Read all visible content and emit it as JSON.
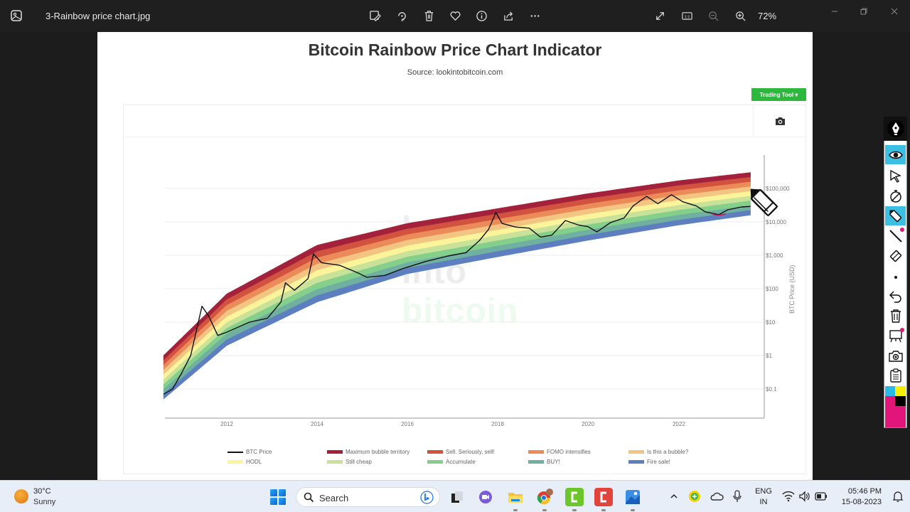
{
  "window": {
    "filename": "3-Rainbow price chart.jpg",
    "zoom_level": "72%",
    "toolbar_icons": [
      "edit-icon",
      "rotate-icon",
      "delete-icon",
      "favorite-icon",
      "info-icon",
      "share-icon",
      "more-icon"
    ],
    "view_icons": [
      "fullscreen-icon",
      "actual-size-icon",
      "zoom-out-icon",
      "zoom-in-icon"
    ],
    "window_controls": [
      "minimize-icon",
      "restore-icon",
      "close-icon"
    ]
  },
  "image": {
    "title": "Bitcoin Rainbow Price Chart Indicator",
    "source": "Source: lookintobitcoin.com",
    "trading_tool_label": "Trading Tool ▾",
    "watermark": [
      "look",
      "into",
      "bitcoin"
    ]
  },
  "chart_data": {
    "type": "line",
    "title": "Bitcoin Rainbow Price Chart Indicator",
    "subtitle": "Source: lookintobitcoin.com",
    "xlabel": "",
    "ylabel": "BTC Price (USD)",
    "yscale": "log",
    "x_ticks": [
      "2012",
      "2014",
      "2016",
      "2018",
      "2020",
      "2022"
    ],
    "y_ticks": [
      "$0.1",
      "$1",
      "$10",
      "$100",
      "$1,000",
      "$10,000",
      "$100,000"
    ],
    "xlim": [
      2010.6,
      2023.7
    ],
    "ylim": [
      0.03,
      1000000
    ],
    "grid": true,
    "legend_position": "bottom",
    "legend": [
      {
        "label": "BTC Price",
        "color": "#111111",
        "kind": "line"
      },
      {
        "label": "Maximum bubble territory",
        "color": "#a3213a",
        "kind": "band"
      },
      {
        "label": "Sell. Seriously, sell!",
        "color": "#d1523f",
        "kind": "band"
      },
      {
        "label": "FOMO intensifies",
        "color": "#ec8b5a",
        "kind": "band"
      },
      {
        "label": "Is this a bubble?",
        "color": "#f3c582",
        "kind": "band"
      },
      {
        "label": "HODL",
        "color": "#fbf49a",
        "kind": "band"
      },
      {
        "label": "Still cheap",
        "color": "#c8e29a",
        "kind": "band"
      },
      {
        "label": "Accumulate",
        "color": "#83cf8b",
        "kind": "band"
      },
      {
        "label": "BUY!",
        "color": "#6fb0a0",
        "kind": "band"
      },
      {
        "label": "Fire sale!",
        "color": "#5e7fbf",
        "kind": "band"
      }
    ],
    "series": [
      {
        "name": "BTC Price",
        "x": [
          2010.6,
          2010.8,
          2011.0,
          2011.2,
          2011.45,
          2011.6,
          2011.8,
          2012.0,
          2012.5,
          2012.9,
          2013.2,
          2013.3,
          2013.5,
          2013.8,
          2013.92,
          2014.1,
          2014.5,
          2014.9,
          2015.1,
          2015.5,
          2015.9,
          2016.4,
          2016.9,
          2017.3,
          2017.6,
          2017.8,
          2017.96,
          2018.1,
          2018.4,
          2018.7,
          2018.95,
          2019.2,
          2019.5,
          2019.8,
          2020.0,
          2020.2,
          2020.5,
          2020.8,
          2021.0,
          2021.3,
          2021.55,
          2021.85,
          2022.1,
          2022.4,
          2022.6,
          2022.9,
          2023.1,
          2023.4,
          2023.6
        ],
        "y": [
          0.07,
          0.1,
          0.3,
          1.0,
          30,
          15,
          4,
          5,
          10,
          13,
          40,
          150,
          90,
          200,
          1100,
          600,
          500,
          300,
          220,
          250,
          400,
          650,
          950,
          1200,
          2800,
          6000,
          19000,
          9000,
          7000,
          6500,
          3500,
          4000,
          11000,
          8000,
          7200,
          5000,
          9500,
          13000,
          30000,
          58000,
          35000,
          65000,
          40000,
          30000,
          20000,
          16500,
          23000,
          28000,
          29000
        ]
      }
    ],
    "bands": {
      "top_edge": {
        "x": [
          2010.6,
          2012,
          2014,
          2016,
          2018,
          2020,
          2022,
          2023.6
        ],
        "y": [
          1.0,
          70,
          2000,
          9000,
          25000,
          70000,
          170000,
          300000
        ]
      },
      "bottom_edge": {
        "x": [
          2010.6,
          2012,
          2014,
          2016,
          2018,
          2020,
          2022,
          2023.6
        ],
        "y": [
          0.05,
          2,
          40,
          280,
          900,
          2800,
          8000,
          16000
        ]
      }
    }
  },
  "legend_items": [
    {
      "label": "BTC Price"
    },
    {
      "label": "Maximum bubble territory"
    },
    {
      "label": "Sell. Seriously, sell!"
    },
    {
      "label": "FOMO intensifies"
    },
    {
      "label": "Is this a bubble?"
    },
    {
      "label": "HODL"
    },
    {
      "label": "Still cheap"
    },
    {
      "label": "Accumulate"
    },
    {
      "label": "BUY!"
    },
    {
      "label": "Fire sale!"
    }
  ],
  "annotation_toolbar": {
    "tools": [
      "pen-logo",
      "eye-icon",
      "pointer-icon",
      "stopwatch-icon",
      "marker-icon",
      "line-icon",
      "eraser-icon",
      "dot-icon",
      "undo-icon",
      "trash-icon",
      "whiteboard-icon",
      "camera-icon",
      "clipboard-icon"
    ],
    "colors": [
      "#2bb9e8",
      "#f7f000",
      "#e2157a",
      "#000000"
    ]
  },
  "taskbar": {
    "weather": {
      "temp": "30°C",
      "condition": "Sunny"
    },
    "search_placeholder": "Search",
    "language": {
      "line1": "ENG",
      "line2": "IN"
    },
    "time": "05:46 PM",
    "date": "15-08-2023"
  }
}
